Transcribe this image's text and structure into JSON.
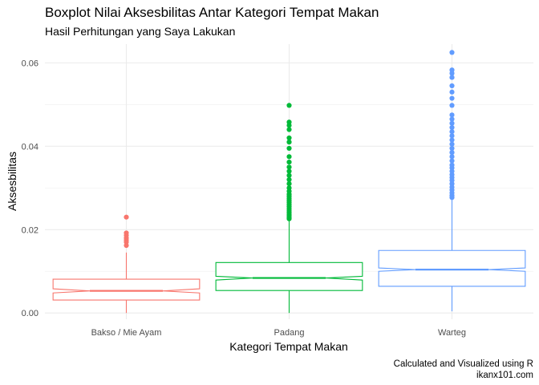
{
  "chart_data": {
    "type": "boxplot",
    "title": "Boxplot Nilai Aksesbilitas Antar Kategori Tempat Makan",
    "subtitle": "Hasil Perhitungan yang Saya Lakukan",
    "xlabel": "Kategori Tempat Makan",
    "ylabel": "Aksesbilitas",
    "caption_lines": [
      "Calculated and Visualized using R",
      "ikanx101.com"
    ],
    "ylim": [
      -0.0015,
      0.0645
    ],
    "y_ticks": [
      0.0,
      0.02,
      0.04,
      0.06
    ],
    "y_tick_labels": [
      "0.00",
      "0.02",
      "0.04",
      "0.06"
    ],
    "grid": true,
    "notched": true,
    "legend": "none",
    "categories": [
      "Bakso / Mie Ayam",
      "Padang",
      "Warteg"
    ],
    "series": [
      {
        "category": "Bakso / Mie Ayam",
        "color": "#F8766D",
        "whisker_low": 0.0,
        "q1": 0.0031,
        "median": 0.0053,
        "q3": 0.0081,
        "whisker_high": 0.0145,
        "notch_low": 0.0048,
        "notch_high": 0.0058,
        "outliers": [
          0.0162,
          0.017,
          0.0175,
          0.018,
          0.0186,
          0.0192,
          0.023
        ]
      },
      {
        "category": "Padang",
        "color": "#00BA38",
        "whisker_low": 0.0,
        "q1": 0.0054,
        "median": 0.0084,
        "q3": 0.0121,
        "whisker_high": 0.0223,
        "notch_low": 0.0079,
        "notch_high": 0.0088,
        "outliers": [
          0.0226,
          0.023,
          0.0235,
          0.024,
          0.0245,
          0.025,
          0.0255,
          0.026,
          0.0265,
          0.027,
          0.0275,
          0.028,
          0.0285,
          0.0292,
          0.03,
          0.031,
          0.032,
          0.033,
          0.034,
          0.035,
          0.0362,
          0.0375,
          0.0395,
          0.041,
          0.042,
          0.044,
          0.045,
          0.0458,
          0.0498
        ]
      },
      {
        "category": "Warteg",
        "color": "#619CFF",
        "whisker_low": 0.0004,
        "q1": 0.0064,
        "median": 0.0104,
        "q3": 0.015,
        "whisker_high": 0.0273,
        "notch_low": 0.01,
        "notch_high": 0.0108,
        "outliers": [
          0.0277,
          0.0282,
          0.0288,
          0.0295,
          0.0302,
          0.031,
          0.0318,
          0.0325,
          0.0332,
          0.034,
          0.0348,
          0.0355,
          0.0365,
          0.0375,
          0.0385,
          0.0395,
          0.0405,
          0.0415,
          0.0425,
          0.0435,
          0.0445,
          0.0455,
          0.0465,
          0.0475,
          0.0498,
          0.0515,
          0.053,
          0.0545,
          0.0565,
          0.0575,
          0.0583,
          0.0625
        ]
      }
    ]
  }
}
